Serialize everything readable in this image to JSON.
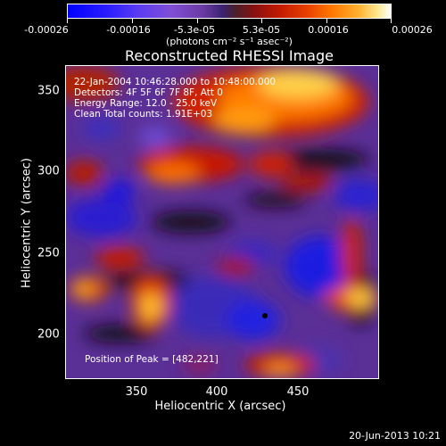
{
  "colorbar": {
    "tick_labels": [
      "-0.00026",
      "-0.00016",
      "-5.3e-05",
      "5.3e-05",
      "0.00016",
      "0.00026"
    ],
    "units": "(photons cm⁻² s⁻¹ asec⁻²)"
  },
  "title": "Reconstructed RHESSI Image",
  "annotations": {
    "time_range": "22-Jan-2004 10:46:28.000 to 10:48:00.000",
    "detectors": "Detectors: 4F 5F 6F 7F 8F, Att 0",
    "energy": "Energy Range: 12.0 - 25.0 keV",
    "clean": "Clean     Total counts: 1.91E+03",
    "peak": "Position of Peak = [482,221]"
  },
  "axes": {
    "xlabel": "Heliocentric X (arcsec)",
    "ylabel": "Heliocentric Y (arcsec)",
    "xticks": [
      "350",
      "400",
      "450"
    ],
    "yticks": [
      "350",
      "300",
      "250",
      "200"
    ]
  },
  "footer": "20-Jun-2013 10:21"
}
